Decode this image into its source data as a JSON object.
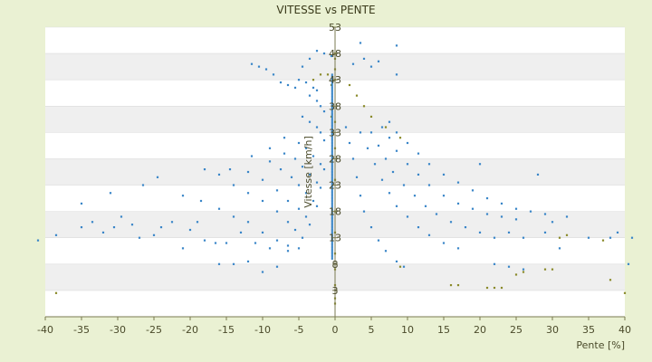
{
  "chart_data": {
    "type": "scatter",
    "title": "VITESSE vs PENTE",
    "xlabel": "Pente [%]",
    "ylabel": "Vitesse [km/h]",
    "xlim": [
      -40,
      40
    ],
    "ylim": [
      -2,
      53
    ],
    "x_ticks": [
      -40,
      -35,
      -30,
      -25,
      -20,
      -15,
      -10,
      -5,
      0,
      5,
      10,
      15,
      20,
      25,
      30,
      35,
      40
    ],
    "y_ticks": [
      3,
      8,
      13,
      18,
      23,
      28,
      33,
      38,
      43,
      48,
      53
    ],
    "grid": "horizontal-bands",
    "colors": {
      "background": "#eaf1d3",
      "plot_band_light": "#ffffff",
      "plot_band_dark": "#efefef",
      "series_main": "#3a86c8",
      "series_secondary": "#8a8a2a"
    },
    "series": [
      {
        "color": "#3a86c8",
        "points": [
          [
            -38.5,
            13.5
          ],
          [
            -35,
            15
          ],
          [
            -33.5,
            16
          ],
          [
            -32,
            14
          ],
          [
            -30.5,
            15
          ],
          [
            -29.5,
            17
          ],
          [
            -28,
            15.5
          ],
          [
            -27,
            13
          ],
          [
            -25,
            13.5
          ],
          [
            -24,
            15
          ],
          [
            -22.5,
            16
          ],
          [
            -21,
            11
          ],
          [
            -20,
            14.5
          ],
          [
            -19,
            16
          ],
          [
            -18,
            12.5
          ],
          [
            -16.5,
            12
          ],
          [
            -15,
            12
          ],
          [
            -13,
            14
          ],
          [
            -11,
            12
          ],
          [
            -9,
            11
          ],
          [
            -6.5,
            10.5
          ],
          [
            -5,
            11
          ],
          [
            -35,
            19.5
          ],
          [
            -31,
            21.5
          ],
          [
            -26.5,
            23
          ],
          [
            -24.5,
            24.5
          ],
          [
            -21,
            21
          ],
          [
            -18.5,
            20
          ],
          [
            -16,
            18.5
          ],
          [
            -14,
            17
          ],
          [
            -12,
            16
          ],
          [
            -10,
            14
          ],
          [
            -8,
            12.5
          ],
          [
            -6.5,
            11.5
          ],
          [
            -18,
            26
          ],
          [
            -16,
            25
          ],
          [
            -14,
            23
          ],
          [
            -12,
            21.5
          ],
          [
            -10,
            20
          ],
          [
            -8,
            18
          ],
          [
            -6.5,
            16
          ],
          [
            -5.5,
            14.5
          ],
          [
            -4.5,
            13
          ],
          [
            -14.5,
            26
          ],
          [
            -12,
            25.5
          ],
          [
            -10,
            24
          ],
          [
            -8,
            22
          ],
          [
            -6.5,
            20
          ],
          [
            -5,
            18.5
          ],
          [
            -4,
            17
          ],
          [
            -3.5,
            15.5
          ],
          [
            -11.5,
            28.5
          ],
          [
            -9,
            27.5
          ],
          [
            -7.5,
            26
          ],
          [
            -6,
            24.5
          ],
          [
            -5,
            23
          ],
          [
            -4,
            21.5
          ],
          [
            -3,
            20
          ],
          [
            -2.5,
            19
          ],
          [
            -9,
            30
          ],
          [
            -7,
            29
          ],
          [
            -5.5,
            28
          ],
          [
            -4.5,
            26.5
          ],
          [
            -3.5,
            25
          ],
          [
            -2.5,
            23.5
          ],
          [
            -2,
            22.5
          ],
          [
            -7,
            32
          ],
          [
            -5,
            31
          ],
          [
            -4,
            30
          ],
          [
            -3,
            28.5
          ],
          [
            -2,
            27
          ],
          [
            -1.5,
            26
          ],
          [
            -4.5,
            36
          ],
          [
            -3.5,
            35
          ],
          [
            -2.5,
            34
          ],
          [
            -2,
            33
          ],
          [
            -1.5,
            31.5
          ],
          [
            -3.5,
            40
          ],
          [
            -2.5,
            39
          ],
          [
            -2,
            38
          ],
          [
            -1.5,
            37
          ],
          [
            -5,
            43
          ],
          [
            -4,
            42.5
          ],
          [
            -3,
            41.5
          ],
          [
            -2.5,
            41
          ],
          [
            -11.5,
            46
          ],
          [
            -10.5,
            45.5
          ],
          [
            -9.5,
            45
          ],
          [
            -8.5,
            44
          ],
          [
            -7.5,
            42.5
          ],
          [
            -6.5,
            42
          ],
          [
            -5.5,
            41.5
          ],
          [
            -4.5,
            45.5
          ],
          [
            -3.5,
            47
          ],
          [
            -2.5,
            48.5
          ],
          [
            -1.5,
            48
          ],
          [
            -0.5,
            47.5
          ],
          [
            -41,
            12.5
          ],
          [
            -10,
            6.5
          ],
          [
            -8,
            7.5
          ],
          [
            -14,
            8
          ],
          [
            -12,
            8.5
          ],
          [
            -16,
            8
          ],
          [
            1.5,
            34
          ],
          [
            2,
            31
          ],
          [
            2.5,
            28
          ],
          [
            3,
            24.5
          ],
          [
            3.5,
            21
          ],
          [
            4,
            18
          ],
          [
            5,
            15
          ],
          [
            6,
            12.5
          ],
          [
            7,
            10.5
          ],
          [
            8.5,
            8.5
          ],
          [
            9.5,
            7.5
          ],
          [
            3.5,
            33
          ],
          [
            4.5,
            30
          ],
          [
            5.5,
            27
          ],
          [
            6.5,
            24
          ],
          [
            7.5,
            21.5
          ],
          [
            8.5,
            19
          ],
          [
            10,
            17
          ],
          [
            11.5,
            15
          ],
          [
            13,
            13.5
          ],
          [
            15,
            12
          ],
          [
            17,
            11
          ],
          [
            5,
            33
          ],
          [
            6,
            30.5
          ],
          [
            7,
            28
          ],
          [
            8,
            25.5
          ],
          [
            9.5,
            23
          ],
          [
            11,
            21
          ],
          [
            12.5,
            19
          ],
          [
            14,
            17.5
          ],
          [
            16,
            16
          ],
          [
            18,
            15
          ],
          [
            20,
            14
          ],
          [
            22,
            13
          ],
          [
            6.5,
            34
          ],
          [
            7.5,
            32
          ],
          [
            8.5,
            29.5
          ],
          [
            10,
            27
          ],
          [
            11.5,
            25
          ],
          [
            13,
            23
          ],
          [
            15,
            21
          ],
          [
            17,
            19.5
          ],
          [
            19,
            18.5
          ],
          [
            21,
            17.5
          ],
          [
            23,
            17
          ],
          [
            25,
            16.5
          ],
          [
            7.5,
            35
          ],
          [
            8.5,
            33
          ],
          [
            10,
            31
          ],
          [
            11.5,
            29
          ],
          [
            13,
            27
          ],
          [
            15,
            25
          ],
          [
            17,
            23.5
          ],
          [
            19,
            22
          ],
          [
            21,
            20.5
          ],
          [
            23,
            19.5
          ],
          [
            25,
            18.5
          ],
          [
            27,
            18
          ],
          [
            29,
            17.5
          ],
          [
            3.5,
            50
          ],
          [
            4,
            47
          ],
          [
            5,
            45.5
          ],
          [
            6,
            46.5
          ],
          [
            8.5,
            44
          ],
          [
            8.5,
            49.5
          ],
          [
            2.5,
            46
          ],
          [
            20,
            27
          ],
          [
            28,
            25
          ],
          [
            32,
            17
          ],
          [
            38,
            13
          ],
          [
            39,
            14
          ],
          [
            41,
            13
          ],
          [
            40.5,
            8
          ],
          [
            35,
            13
          ],
          [
            30,
            16
          ],
          [
            24,
            14
          ],
          [
            26,
            13
          ],
          [
            22,
            8
          ],
          [
            24,
            7.5
          ],
          [
            26,
            7
          ],
          [
            31,
            11
          ],
          [
            29,
            14
          ]
        ]
      },
      {
        "color": "#8a8a2a",
        "points": [
          [
            -38.5,
            2.5
          ],
          [
            0,
            48
          ],
          [
            0,
            47
          ],
          [
            0,
            45
          ],
          [
            0,
            43
          ],
          [
            0,
            35
          ],
          [
            0,
            30
          ],
          [
            0,
            24
          ],
          [
            0,
            18
          ],
          [
            0,
            14
          ],
          [
            0,
            10
          ],
          [
            0,
            7
          ],
          [
            0,
            4
          ],
          [
            0,
            1.5
          ],
          [
            0,
            0.5
          ],
          [
            -0.5,
            36
          ],
          [
            -0.5,
            42
          ],
          [
            -1,
            44
          ],
          [
            2,
            42
          ],
          [
            3,
            40
          ],
          [
            4,
            38
          ],
          [
            5,
            36
          ],
          [
            7,
            34
          ],
          [
            9,
            32
          ],
          [
            9,
            7.5
          ],
          [
            16,
            4
          ],
          [
            17,
            4
          ],
          [
            21,
            3.5
          ],
          [
            22,
            3.5
          ],
          [
            23,
            3.5
          ],
          [
            25,
            6
          ],
          [
            26,
            6.5
          ],
          [
            29,
            7
          ],
          [
            30,
            7
          ],
          [
            31,
            13
          ],
          [
            32,
            13.5
          ],
          [
            37,
            12.5
          ],
          [
            38,
            5
          ],
          [
            40,
            2.5
          ],
          [
            -2,
            44
          ],
          [
            -3,
            43
          ]
        ]
      }
    ]
  }
}
